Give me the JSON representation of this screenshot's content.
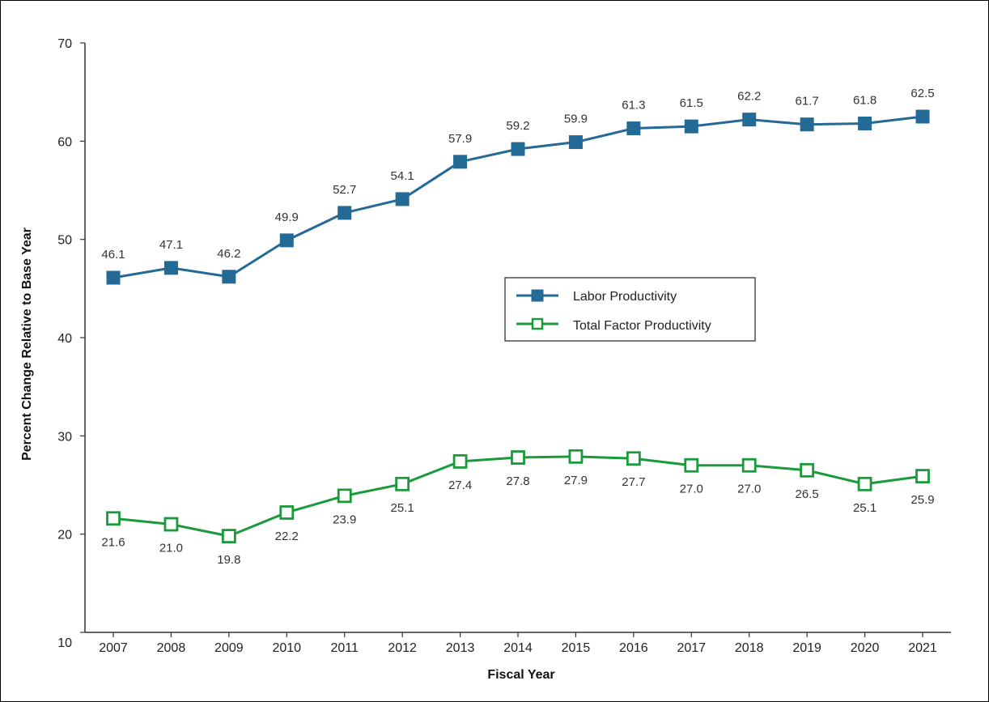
{
  "chart_data": {
    "type": "line",
    "title": "",
    "xlabel": "Fiscal Year",
    "ylabel": "Percent Change Relative to Base Year",
    "ylim": [
      10,
      70
    ],
    "yticks": [
      10,
      20,
      30,
      40,
      50,
      60,
      70
    ],
    "categories": [
      "2007",
      "2008",
      "2009",
      "2010",
      "2011",
      "2012",
      "2013",
      "2014",
      "2015",
      "2016",
      "2017",
      "2018",
      "2019",
      "2020",
      "2021"
    ],
    "legend_position": "center-right",
    "grid": false,
    "series": [
      {
        "name": "Labor Productivity",
        "color": "#236a96",
        "marker": "filled-square",
        "label_position": "above",
        "values": [
          46.1,
          47.1,
          46.2,
          49.9,
          52.7,
          54.1,
          57.9,
          59.2,
          59.9,
          61.3,
          61.5,
          62.2,
          61.7,
          61.8,
          62.5
        ],
        "labels": [
          "46.1",
          "47.1",
          "46.2",
          "49.9",
          "52.7",
          "54.1",
          "57.9",
          "59.2",
          "59.9",
          "61.3",
          "61.5",
          "62.2",
          "61.7",
          "61.8",
          "62.5"
        ]
      },
      {
        "name": "Total Factor Productivity",
        "color": "#1a9a3a",
        "marker": "hollow-square",
        "label_position": "below",
        "values": [
          21.6,
          21.0,
          19.8,
          22.2,
          23.9,
          25.1,
          27.4,
          27.8,
          27.9,
          27.7,
          27.0,
          27.0,
          26.5,
          25.1,
          25.9
        ],
        "labels": [
          "21.6",
          "21.0",
          "19.8",
          "22.2",
          "23.9",
          "25.1",
          "27.4",
          "27.8",
          "27.9",
          "27.7",
          "27.0",
          "27.0",
          "26.5",
          "25.1",
          "25.9"
        ]
      }
    ]
  }
}
